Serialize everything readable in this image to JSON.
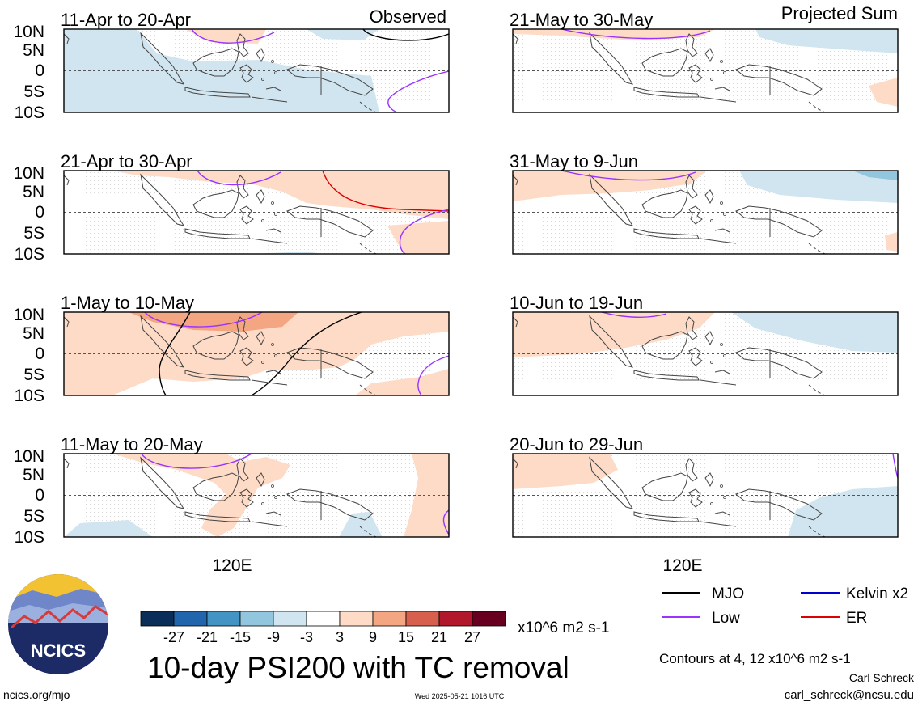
{
  "figure": {
    "title": "10-day PSI200 with TC removal",
    "observed_label": "Observed",
    "projected_label": "Projected Sum",
    "contour_note": "Contours at 4, 12 x10^6 m2 s-1",
    "credit_name": "Carl Schreck",
    "credit_email": "carl_schreck@ncsu.edu",
    "site_url": "ncics.org/mjo",
    "timestamp": "Wed 2025-05-21 1016 UTC",
    "logo_text": "NCICS"
  },
  "axes": {
    "lat_labels": [
      "10N",
      "5N",
      "0",
      "5S",
      "10S"
    ],
    "lon_label": "120E"
  },
  "panels_observed": [
    {
      "label": "11-Apr to 20-Apr"
    },
    {
      "label": "21-Apr to 30-Apr"
    },
    {
      "label": "1-May to 10-May"
    },
    {
      "label": "11-May to 20-May"
    }
  ],
  "panels_projected": [
    {
      "label": "21-May to 30-May"
    },
    {
      "label": "31-May to 9-Jun"
    },
    {
      "label": "10-Jun to 19-Jun"
    },
    {
      "label": "20-Jun to 29-Jun"
    }
  ],
  "colorbar": {
    "units": "x10^6 m2 s-1",
    "ticks": [
      "-27",
      "-21",
      "-15",
      "-9",
      "-3",
      "3",
      "9",
      "15",
      "21",
      "27"
    ],
    "colors": [
      "#0b2e58",
      "#2166ac",
      "#4393c3",
      "#92c5de",
      "#d1e5f0",
      "#ffffff",
      "#fddbc7",
      "#f4a582",
      "#d6604d",
      "#b2182b",
      "#67001f"
    ]
  },
  "legend": [
    {
      "label": "MJO",
      "color": "#000000"
    },
    {
      "label": "Kelvin x2",
      "color": "#0000cc"
    },
    {
      "label": "Low",
      "color": "#9933ff"
    },
    {
      "label": "ER",
      "color": "#dd0000"
    }
  ]
}
